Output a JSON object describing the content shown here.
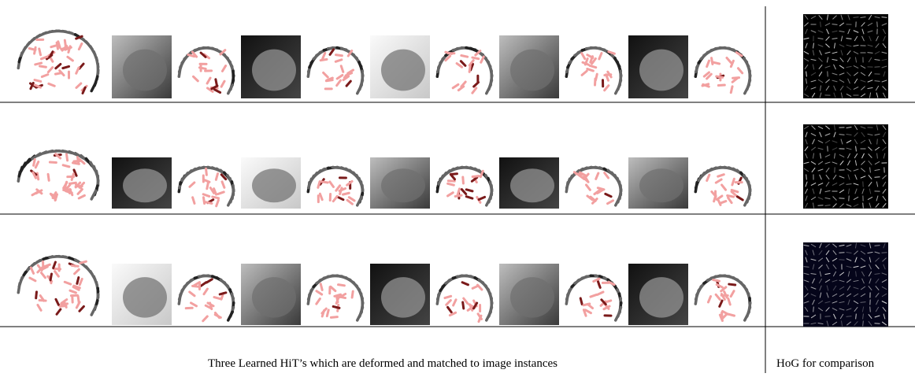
{
  "captions": {
    "left": "Three Learned HiT’s which are deformed and matched to image instances",
    "right": "HoG for comparison"
  }
}
